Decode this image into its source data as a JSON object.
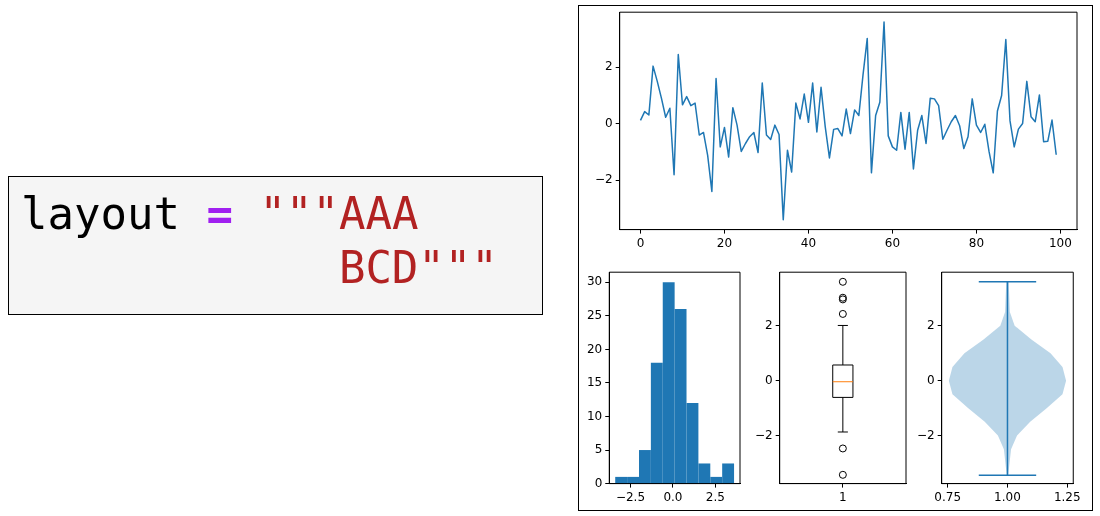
{
  "chart_data": [
    {
      "type": "other",
      "annotations": [
        "layout",
        "=",
        "\"\"\"AAA",
        "BCD\"\"\""
      ]
    },
    {
      "type": "line",
      "color": "#1f77b4",
      "xlim": [
        -4.95,
        103.95
      ],
      "ylim": [
        -3.75,
        3.95
      ],
      "xticks": [
        0,
        20,
        40,
        60,
        80,
        100
      ],
      "yticks": [
        -2,
        0,
        2
      ],
      "x": [
        0,
        1,
        2,
        3,
        4,
        5,
        6,
        7,
        8,
        9,
        10,
        11,
        12,
        13,
        14,
        15,
        16,
        17,
        18,
        19,
        20,
        21,
        22,
        23,
        24,
        25,
        26,
        27,
        28,
        29,
        30,
        31,
        32,
        33,
        34,
        35,
        36,
        37,
        38,
        39,
        40,
        41,
        42,
        43,
        44,
        45,
        46,
        47,
        48,
        49,
        50,
        51,
        52,
        53,
        54,
        55,
        56,
        57,
        58,
        59,
        60,
        61,
        62,
        63,
        64,
        65,
        66,
        67,
        68,
        69,
        70,
        71,
        72,
        73,
        74,
        75,
        76,
        77,
        78,
        79,
        80,
        81,
        82,
        83,
        84,
        85,
        86,
        87,
        88,
        89,
        90,
        91,
        92,
        93,
        94,
        95,
        96,
        97,
        98,
        99
      ],
      "values": [
        0.12,
        0.43,
        0.31,
        2.04,
        1.5,
        0.9,
        0.23,
        0.55,
        -1.81,
        2.45,
        0.67,
        0.96,
        0.64,
        0.73,
        -0.4,
        -0.31,
        -1.12,
        -2.4,
        1.6,
        -0.82,
        -0.13,
        -1.18,
        0.57,
        -0.05,
        -0.98,
        -0.7,
        -0.46,
        -0.31,
        -1.02,
        1.44,
        -0.4,
        -0.56,
        -0.05,
        -0.38,
        -3.4,
        -0.94,
        -1.71,
        0.73,
        0.17,
        1.05,
        0.05,
        1.44,
        -0.29,
        1.29,
        -0.11,
        -1.21,
        -0.2,
        -0.17,
        -0.43,
        0.52,
        -0.35,
        0.49,
        0.29,
        1.74,
        3.02,
        -1.74,
        0.29,
        0.76,
        3.6,
        -0.43,
        -0.82,
        -0.94,
        0.4,
        -0.9,
        0.4,
        -1.6,
        -0.23,
        0.29,
        -0.7,
        0.9,
        0.88,
        0.64,
        -0.55,
        -0.23,
        0.07,
        0.29,
        -0.07,
        -0.88,
        -0.46,
        0.88,
        -0.05,
        -0.31,
        -0.02,
        -0.98,
        -1.74,
        0.45,
        1.0,
        2.98,
        0.1,
        -0.82,
        -0.19,
        0.01,
        1.5,
        0.25,
        0.07,
        1.02,
        -0.64,
        -0.62,
        0.13,
        -1.1
      ]
    },
    {
      "type": "histogram",
      "color": "#1f77b4",
      "bins": [
        -3.4,
        -2.7,
        -2.0,
        -1.3,
        -0.6,
        0.1,
        0.8,
        1.5,
        2.2,
        2.9,
        3.6
      ],
      "values": [
        1,
        1,
        5,
        18,
        30,
        26,
        12,
        3,
        1,
        3
      ],
      "xlim": [
        -3.75,
        3.95
      ],
      "ylim": [
        0,
        31.5
      ],
      "xticks": [
        {
          "value": -2.5,
          "label": "−2.5"
        },
        {
          "value": 0,
          "label": "0.0"
        },
        {
          "value": 2.5,
          "label": "2.5"
        }
      ],
      "yticks": [
        0,
        5,
        10,
        15,
        20,
        25,
        30
      ]
    },
    {
      "type": "box",
      "categories": [
        "1"
      ],
      "boxes": [
        {
          "low": -1.87,
          "q1": -0.61,
          "median": -0.04,
          "q3": 0.57,
          "high": 2.01,
          "outliers": [
            3.6,
            3.02,
            2.96,
            2.43,
            -2.47,
            -3.43
          ]
        }
      ],
      "ylim": [
        -3.75,
        3.95
      ],
      "yticks": [
        -2,
        0,
        2
      ]
    },
    {
      "type": "line",
      "series": [
        {
          "type": "area",
          "color": "#1f77b4",
          "x": [
            1.005,
            1.01,
            1.03,
            1.1,
            1.18,
            1.23,
            1.245,
            1.23,
            1.165,
            1.095,
            1.04,
            1.015,
            1.003,
            0.997,
            0.985,
            0.96,
            0.905,
            0.835,
            0.77,
            0.755,
            0.77,
            0.82,
            0.9,
            0.97,
            0.99,
            0.995
          ],
          "values": [
            3.6,
            2.5,
            2,
            1.5,
            1,
            0.5,
            0,
            -0.5,
            -1,
            -1.5,
            -2,
            -2.5,
            -3.45,
            -3.45,
            -2.5,
            -2,
            -1.5,
            -1,
            -0.5,
            0,
            0.5,
            1,
            1.5,
            2,
            2.5,
            3.6
          ]
        },
        {
          "type": "line",
          "color": "#1f77b4",
          "x": [
            1,
            1
          ],
          "values": [
            -3.45,
            3.6
          ]
        },
        {
          "type": "line",
          "color": "#1f77b4",
          "x": [
            0.88,
            1.12
          ],
          "values": [
            3.6,
            3.6
          ]
        },
        {
          "type": "line",
          "color": "#1f77b4",
          "x": [
            0.88,
            1.12
          ],
          "values": [
            -3.45,
            -3.45
          ]
        }
      ],
      "xlim": [
        0.725,
        1.275
      ],
      "ylim": [
        -3.75,
        3.95
      ],
      "xticks": [
        {
          "value": 0.75,
          "label": "0.75"
        },
        {
          "value": 1,
          "label": "1.00"
        },
        {
          "value": 1.25,
          "label": "1.25"
        }
      ],
      "yticks": [
        -2,
        0,
        2
      ]
    }
  ]
}
